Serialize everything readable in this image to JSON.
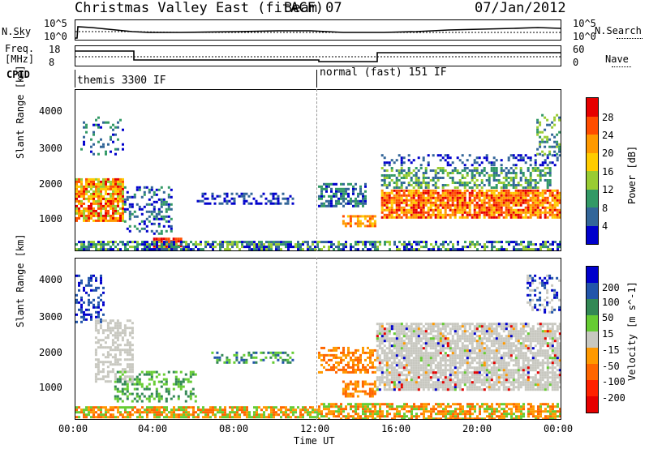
{
  "header": {
    "title": "Christmas Valley East (fitACF)",
    "beam": "Beam 07",
    "date": "07/Jan/2012"
  },
  "labels": {
    "nsky": "N.Sky",
    "nsearch": "N.Search",
    "freq_line1": "Freq.",
    "freq_line2": "[MHz]",
    "nave": "Nave",
    "cpid": "CPID",
    "nsky_ticks": [
      "10^5",
      "10^0"
    ],
    "nsearch_ticks": [
      "10^5",
      "10^0"
    ],
    "freq_ticks": [
      "18",
      "8"
    ],
    "nave_ticks": [
      "60",
      "0"
    ]
  },
  "cpid_segments": [
    "themis 3300 IF",
    "normal (fast) 151 IF"
  ],
  "chart_data": [
    {
      "type": "heatmap",
      "name": "power",
      "ylabel": "Slant Range [km]",
      "yticks": [
        1000,
        2000,
        3000,
        4000
      ],
      "ylim": [
        180,
        4500
      ],
      "xlim": [
        0,
        24
      ],
      "xticks_hours": [
        0,
        4,
        8,
        12,
        16,
        20,
        24
      ],
      "colorbar": {
        "label": "Power [dB]",
        "ticks": [
          "28",
          "24",
          "20",
          "16",
          "12",
          "8",
          "4"
        ],
        "colors": [
          "#e60000",
          "#ff4d00",
          "#ff9900",
          "#ffcc00",
          "#99cc33",
          "#339966",
          "#336699",
          "#0000cc"
        ]
      }
    },
    {
      "type": "heatmap",
      "name": "velocity",
      "ylabel": "Slant Range [km]",
      "yticks": [
        1000,
        2000,
        3000,
        4000
      ],
      "ylim": [
        180,
        4500
      ],
      "xlim": [
        0,
        24
      ],
      "xticks": [
        "00:00",
        "04:00",
        "08:00",
        "12:00",
        "16:00",
        "20:00",
        "00:00"
      ],
      "xlabel": "Time UT",
      "colorbar": {
        "label": "Velocity [m s^-1]",
        "ticks": [
          "200",
          "100",
          "50",
          "15",
          "-15",
          "-50",
          "-100",
          "-200"
        ],
        "colors": [
          "#0000cc",
          "#2255aa",
          "#338855",
          "#66cc33",
          "#c8c8c0",
          "#ff9900",
          "#ff6600",
          "#ff2200",
          "#e60000"
        ]
      }
    }
  ]
}
